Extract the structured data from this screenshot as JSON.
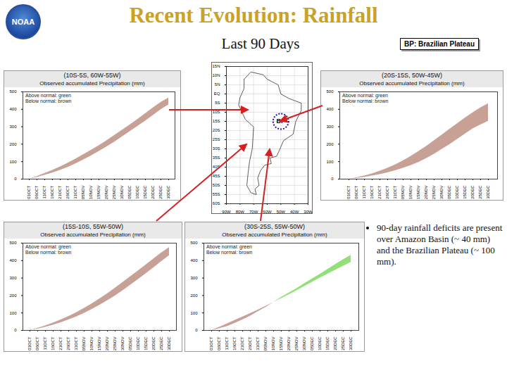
{
  "title": "Recent Evolution: Rainfall",
  "subtitle": "Last 90 Days",
  "key_box": "BP: Brazilian Plateau",
  "logo_text": "NOAA",
  "bullet": "90-day rainfall deficits are present over Amazon Basin (~ 40 mm) and the Brazilian Plateau (~ 100 mm).",
  "chart_data": [
    {
      "type": "map",
      "xlim": [
        -90,
        -30
      ],
      "ylim": [
        -60,
        15
      ],
      "xticks": [
        {
          "value": -90,
          "label": "90W"
        },
        {
          "value": -80,
          "label": "80W"
        },
        {
          "value": -70,
          "label": "70W"
        },
        {
          "value": -60,
          "label": "60W"
        },
        {
          "value": -50,
          "label": "50W"
        },
        {
          "value": -40,
          "label": "40W"
        },
        {
          "value": -30,
          "label": "30W"
        }
      ],
      "yticks": [
        {
          "value": 15,
          "label": "15N"
        },
        {
          "value": 10,
          "label": "10N"
        },
        {
          "value": 5,
          "label": "5N"
        },
        {
          "value": 0,
          "label": "EQ"
        },
        {
          "value": -5,
          "label": "5S"
        },
        {
          "value": -10,
          "label": "10S"
        },
        {
          "value": -15,
          "label": "15S"
        },
        {
          "value": -20,
          "label": "20S"
        },
        {
          "value": -25,
          "label": "25S"
        },
        {
          "value": -30,
          "label": "30S"
        },
        {
          "value": -35,
          "label": "35S"
        },
        {
          "value": -40,
          "label": "40S"
        },
        {
          "value": -45,
          "label": "45S"
        },
        {
          "value": -50,
          "label": "50S"
        },
        {
          "value": -55,
          "label": "55S"
        },
        {
          "value": -60,
          "label": "60S"
        }
      ],
      "grid": true,
      "outline": {
        "lon": [
          -77,
          -72,
          -63,
          -60,
          -52,
          -50,
          -44,
          -35,
          -35,
          -39,
          -41,
          -48,
          -53,
          -58,
          -57,
          -62,
          -65,
          -67,
          -66,
          -69,
          -68,
          -72,
          -75,
          -74,
          -73,
          -71,
          -70,
          -76,
          -81,
          -80,
          -77,
          -77
        ],
        "lat": [
          8,
          12,
          10.5,
          8,
          5,
          0,
          -2.5,
          -5,
          -9,
          -15,
          -22,
          -25.5,
          -34,
          -35,
          -38,
          -39,
          -42,
          -46,
          -50,
          -52,
          -55,
          -54,
          -50,
          -43,
          -37,
          -30,
          -18,
          -14,
          -6,
          -2,
          3,
          8
        ]
      },
      "region": {
        "label": "BP",
        "lon": -50,
        "lat": -15
      },
      "color": "#1a1aa0"
    },
    {
      "type": "area",
      "title": "(10S-5S, 60W-55W)",
      "subtitle": "Observed accumulated Precipitation (mm)",
      "legend": "top-left",
      "legend_labels": [
        "Above normal: green",
        "Below normal: brown"
      ],
      "colors": [
        "#93e07a",
        "#c7a096"
      ],
      "x": [
        "01OCT",
        "06OCT",
        "11OCT",
        "16OCT",
        "21OCT",
        "26OCT",
        "31OCT",
        "05NOV",
        "10NOV",
        "15NOV",
        "20NOV",
        "25NOV",
        "30NOV",
        "05DEC",
        "10DEC",
        "15DEC",
        "20DEC",
        "25DEC",
        "30DEC"
      ],
      "observed": [
        0,
        10,
        22,
        35,
        50,
        68,
        88,
        110,
        133,
        158,
        184,
        212,
        242,
        272,
        302,
        333,
        365,
        398,
        425
      ],
      "normal": [
        0,
        15,
        32,
        50,
        70,
        92,
        115,
        140,
        165,
        192,
        220,
        250,
        280,
        310,
        342,
        375,
        408,
        440,
        465
      ],
      "ylim": [
        0,
        500
      ],
      "yticks": [
        0,
        100,
        200,
        300,
        400,
        500
      ]
    },
    {
      "type": "area",
      "title": "(20S-15S, 50W-45W)",
      "subtitle": "Observed accumulated Precipitation (mm)",
      "legend": "top-left",
      "legend_labels": [
        "Above normal: green",
        "Below normal: brown"
      ],
      "colors": [
        "#93e07a",
        "#c7a096"
      ],
      "x": [
        "01OCT",
        "06OCT",
        "11OCT",
        "16OCT",
        "21OCT",
        "26OCT",
        "31OCT",
        "05NOV",
        "10NOV",
        "15NOV",
        "20NOV",
        "25NOV",
        "30NOV",
        "05DEC",
        "10DEC",
        "15DEC",
        "20DEC",
        "25DEC",
        "30DEC"
      ],
      "observed": [
        0,
        5,
        10,
        18,
        26,
        36,
        48,
        62,
        78,
        96,
        118,
        142,
        170,
        198,
        228,
        258,
        288,
        310,
        332
      ],
      "normal": [
        0,
        8,
        18,
        30,
        45,
        62,
        82,
        105,
        130,
        158,
        188,
        220,
        252,
        285,
        318,
        350,
        380,
        408,
        432
      ],
      "ylim": [
        0,
        500
      ],
      "yticks": [
        0,
        100,
        200,
        300,
        400,
        500
      ]
    },
    {
      "type": "area",
      "title": "(15S-10S, 55W-50W)",
      "subtitle": "Observed accumulated Precipitation (mm)",
      "legend": "top-left",
      "legend_labels": [
        "Above normal: green",
        "Below normal: brown"
      ],
      "colors": [
        "#93e07a",
        "#c7a096"
      ],
      "x": [
        "01OCT",
        "06OCT",
        "11OCT",
        "16OCT",
        "21OCT",
        "26OCT",
        "31OCT",
        "05NOV",
        "10NOV",
        "15NOV",
        "20NOV",
        "25NOV",
        "30NOV",
        "05DEC",
        "10DEC",
        "15DEC",
        "20DEC",
        "25DEC",
        "30DEC"
      ],
      "observed": [
        0,
        8,
        18,
        30,
        44,
        60,
        78,
        98,
        120,
        144,
        170,
        198,
        228,
        260,
        292,
        326,
        360,
        395,
        428
      ],
      "normal": [
        0,
        12,
        26,
        42,
        60,
        80,
        102,
        126,
        152,
        180,
        210,
        242,
        275,
        308,
        342,
        376,
        410,
        445,
        475
      ],
      "ylim": [
        0,
        500
      ],
      "yticks": [
        0,
        100,
        200,
        300,
        400,
        500
      ]
    },
    {
      "type": "area",
      "title": "(30S-25S, 55W-50W)",
      "subtitle": "Observed accumulated Precipitation (mm)",
      "legend": "top-left",
      "legend_labels": [
        "Above normal: green",
        "Below normal: brown"
      ],
      "colors": [
        "#93e07a",
        "#c7a096"
      ],
      "x": [
        "01OCT",
        "06OCT",
        "11OCT",
        "16OCT",
        "21OCT",
        "26OCT",
        "31OCT",
        "05NOV",
        "10NOV",
        "15NOV",
        "20NOV",
        "25NOV",
        "30NOV",
        "05DEC",
        "10DEC",
        "15DEC",
        "20DEC",
        "25DEC",
        "30DEC"
      ],
      "observed": [
        0,
        10,
        22,
        40,
        60,
        82,
        108,
        132,
        160,
        190,
        215,
        240,
        268,
        295,
        322,
        350,
        378,
        405,
        430
      ],
      "normal": [
        0,
        18,
        37,
        57,
        77,
        97,
        117,
        138,
        160,
        182,
        205,
        228,
        252,
        276,
        300,
        323,
        346,
        368,
        390
      ],
      "ylim": [
        0,
        500
      ],
      "yticks": [
        0,
        100,
        200,
        300,
        400,
        500
      ]
    }
  ]
}
